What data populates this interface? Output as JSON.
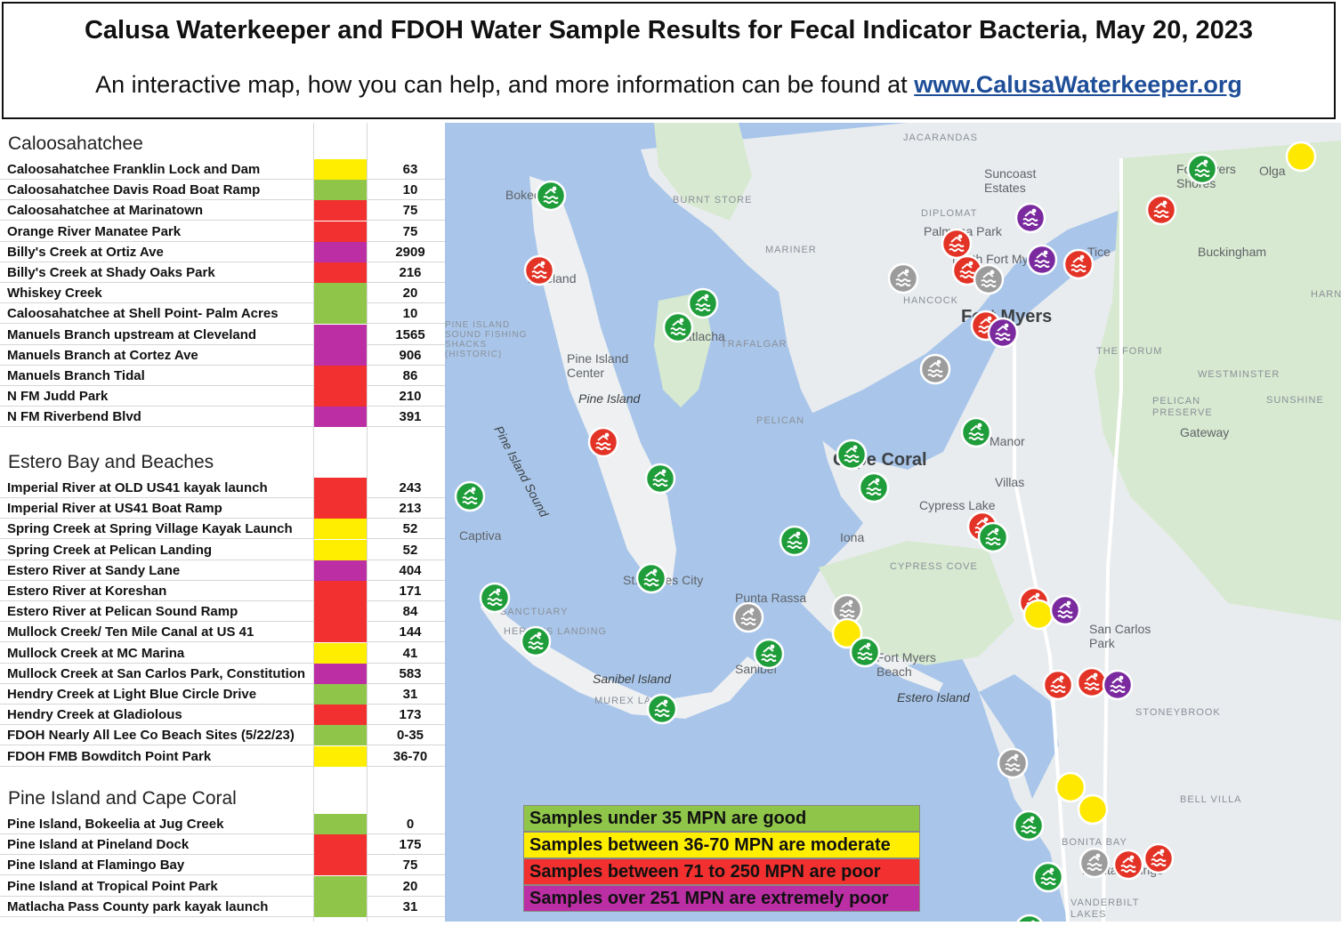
{
  "header": {
    "title": "Calusa Waterkeeper and FDOH Water Sample Results for Fecal Indicator Bacteria, May 20, 2023",
    "subtitle_prefix": "An interactive map, how you can help, and more information can be found at",
    "link_text": "www.CalusaWaterkeeper.org"
  },
  "colors": {
    "good": "#8fc64a",
    "moderate": "#ffee00",
    "poor": "#f23030",
    "extreme": "#bb2ea4",
    "gray": "#999999"
  },
  "sections": [
    {
      "title": "Caloosahatchee",
      "rows": [
        {
          "name": "Caloosahatchee Franklin Lock and Dam",
          "value": "63",
          "level": "moderate"
        },
        {
          "name": "Caloosahatchee Davis Road Boat Ramp",
          "value": "10",
          "level": "good"
        },
        {
          "name": "Caloosahatchee at Marinatown",
          "value": "75",
          "level": "poor"
        },
        {
          "name": "Orange River Manatee Park",
          "value": "75",
          "level": "poor"
        },
        {
          "name": "Billy's Creek at Ortiz Ave",
          "value": "2909",
          "level": "extreme"
        },
        {
          "name": "Billy's Creek at Shady Oaks Park",
          "value": "216",
          "level": "poor"
        },
        {
          "name": "Whiskey Creek",
          "value": "20",
          "level": "good"
        },
        {
          "name": "Caloosahatchee at Shell Point- Palm Acres",
          "value": "10",
          "level": "good"
        },
        {
          "name": "Manuels Branch upstream at Cleveland",
          "value": "1565",
          "level": "extreme"
        },
        {
          "name": "Manuels Branch at Cortez Ave",
          "value": "906",
          "level": "extreme"
        },
        {
          "name": "Manuels Branch Tidal",
          "value": "86",
          "level": "poor"
        },
        {
          "name": "N FM Judd Park",
          "value": "210",
          "level": "poor"
        },
        {
          "name": "N FM Riverbend Blvd",
          "value": "391",
          "level": "extreme"
        }
      ]
    },
    {
      "title": "Estero Bay and Beaches",
      "rows": [
        {
          "name": "Imperial River at OLD US41 kayak launch",
          "value": "243",
          "level": "poor"
        },
        {
          "name": "Imperial River at US41 Boat Ramp",
          "value": "213",
          "level": "poor"
        },
        {
          "name": "Spring Creek at Spring Village Kayak Launch",
          "value": "52",
          "level": "moderate"
        },
        {
          "name": "Spring Creek at Pelican Landing",
          "value": "52",
          "level": "moderate"
        },
        {
          "name": "Estero River at Sandy Lane",
          "value": "404",
          "level": "extreme"
        },
        {
          "name": "Estero River at Koreshan",
          "value": "171",
          "level": "poor"
        },
        {
          "name": "Estero River at Pelican Sound Ramp",
          "value": "84",
          "level": "poor"
        },
        {
          "name": "Mullock Creek/ Ten Mile Canal at US 41",
          "value": "144",
          "level": "poor"
        },
        {
          "name": "Mullock Creek at MC Marina",
          "value": "41",
          "level": "moderate"
        },
        {
          "name": "Mullock Creek at San Carlos Park, Constitution",
          "value": "583",
          "level": "extreme"
        },
        {
          "name": "Hendry Creek at Light Blue Circle Drive",
          "value": "31",
          "level": "good"
        },
        {
          "name": "Hendry Creek at Gladiolous",
          "value": "173",
          "level": "poor"
        },
        {
          "name": "FDOH Nearly All Lee Co Beach Sites (5/22/23)",
          "value": "0-35",
          "level": "good"
        },
        {
          "name": "FDOH FMB Bowditch Point Park",
          "value": "36-70",
          "level": "moderate"
        }
      ]
    },
    {
      "title": "Pine Island and Cape Coral",
      "rows": [
        {
          "name": "Pine Island, Bokeelia at Jug Creek",
          "value": "0",
          "level": "good"
        },
        {
          "name": "Pine Island at Pineland Dock",
          "value": "175",
          "level": "poor"
        },
        {
          "name": "Pine Island at Flamingo Bay",
          "value": "75",
          "level": "poor"
        },
        {
          "name": "Pine Island at Tropical Point Park",
          "value": "20",
          "level": "good"
        },
        {
          "name": "Matlacha Pass County park kayak launch",
          "value": "31",
          "level": "good"
        }
      ]
    }
  ],
  "map": {
    "labels": [
      {
        "id": "jacarandas",
        "text": "JACARANDAS",
        "style": "small"
      },
      {
        "id": "suncoast",
        "text": "Suncoast Estates",
        "style": "town"
      },
      {
        "id": "olga",
        "text": "Olga",
        "style": "town"
      },
      {
        "id": "fmshores",
        "text": "Fort Myers Shores",
        "style": "town"
      },
      {
        "id": "bokeelia",
        "text": "Bokeelia",
        "style": "town"
      },
      {
        "id": "burntstore",
        "text": "BURNT STORE",
        "style": "small"
      },
      {
        "id": "diplomat",
        "text": "DIPLOMAT",
        "style": "small"
      },
      {
        "id": "palmona",
        "text": "Palmona Park",
        "style": "town"
      },
      {
        "id": "buckingham",
        "text": "Buckingham",
        "style": "town"
      },
      {
        "id": "mariner",
        "text": "MARINER",
        "style": "small"
      },
      {
        "id": "tice",
        "text": "Tice",
        "style": "town"
      },
      {
        "id": "nfm",
        "text": "North Fort Myers",
        "style": "town"
      },
      {
        "id": "pineland",
        "text": "Pineland",
        "style": "town"
      },
      {
        "id": "hancock",
        "text": "HANCOCK",
        "style": "small"
      },
      {
        "id": "harns",
        "text": "HARNS",
        "style": "small"
      },
      {
        "id": "fortmyers",
        "text": "Fort Myers",
        "style": "city"
      },
      {
        "id": "pishacks",
        "text": "PINE ISLAND SOUND FISHING SHACKS (HISTORIC)",
        "style": "small"
      },
      {
        "id": "matlacha",
        "text": "Matlacha",
        "style": "town"
      },
      {
        "id": "trafalgar",
        "text": "TRAFALGAR",
        "style": "small"
      },
      {
        "id": "picenter",
        "text": "Pine Island Center",
        "style": "town"
      },
      {
        "id": "theforum",
        "text": "THE FORUM",
        "style": "small"
      },
      {
        "id": "westminster",
        "text": "WESTMINSTER",
        "style": "small"
      },
      {
        "id": "pineisland",
        "text": "Pine Island",
        "style": "italic"
      },
      {
        "id": "pelicanpres",
        "text": "PELICAN PRESERVE",
        "style": "small"
      },
      {
        "id": "sunshine",
        "text": "SUNSHINE",
        "style": "small"
      },
      {
        "id": "pelican",
        "text": "PELICAN",
        "style": "small"
      },
      {
        "id": "gateway",
        "text": "Gateway",
        "style": "town"
      },
      {
        "id": "pisound",
        "text": "Pine Island Sound",
        "style": "italic"
      },
      {
        "id": "manor",
        "text": "Manor",
        "style": "town"
      },
      {
        "id": "capecoral",
        "text": "Cape Coral",
        "style": "city"
      },
      {
        "id": "villas",
        "text": "Villas",
        "style": "town"
      },
      {
        "id": "captiva",
        "text": "Captiva",
        "style": "town"
      },
      {
        "id": "cypresslake",
        "text": "Cypress Lake",
        "style": "town"
      },
      {
        "id": "iona",
        "text": "Iona",
        "style": "town"
      },
      {
        "id": "cypresscove",
        "text": "CYPRESS COVE",
        "style": "small"
      },
      {
        "id": "stjames",
        "text": "St. James City",
        "style": "town"
      },
      {
        "id": "puntarassa",
        "text": "Punta Rassa",
        "style": "town"
      },
      {
        "id": "sanctuary",
        "text": "SANCTUARY",
        "style": "small"
      },
      {
        "id": "herons",
        "text": "HERON'S LANDING",
        "style": "small"
      },
      {
        "id": "sancarlos",
        "text": "San Carlos Park",
        "style": "town"
      },
      {
        "id": "sanibel",
        "text": "Sanibel",
        "style": "town"
      },
      {
        "id": "fmbeach",
        "text": "Fort Myers Beach",
        "style": "town"
      },
      {
        "id": "sanibelisland",
        "text": "Sanibel Island",
        "style": "italic"
      },
      {
        "id": "esteroisland",
        "text": "Estero Island",
        "style": "italic"
      },
      {
        "id": "murexlakes",
        "text": "MUREX LAKES",
        "style": "small"
      },
      {
        "id": "stoneybrook",
        "text": "STONEYBROOK",
        "style": "small"
      },
      {
        "id": "bellvilla",
        "text": "BELL VILLA",
        "style": "small"
      },
      {
        "id": "bonitabay",
        "text": "BONITA BAY",
        "style": "small"
      },
      {
        "id": "bonitasprings",
        "text": "Bonita Springs",
        "style": "town"
      },
      {
        "id": "vanderbilt",
        "text": "VANDERBILT LAKES",
        "style": "small"
      }
    ],
    "markers": [
      {
        "level": "moderate"
      },
      {
        "level": "good"
      },
      {
        "level": "poor"
      },
      {
        "level": "extreme"
      },
      {
        "level": "good"
      },
      {
        "level": "poor"
      },
      {
        "level": "poor"
      },
      {
        "level": "poor"
      },
      {
        "level": "extreme"
      },
      {
        "level": "poor"
      },
      {
        "level": "gray"
      },
      {
        "level": "gray"
      },
      {
        "level": "good"
      },
      {
        "level": "good"
      },
      {
        "level": "poor"
      },
      {
        "level": "extreme"
      },
      {
        "level": "gray"
      },
      {
        "level": "poor"
      },
      {
        "level": "good"
      },
      {
        "level": "good"
      },
      {
        "level": "good"
      },
      {
        "level": "good"
      },
      {
        "level": "good"
      },
      {
        "level": "poor"
      },
      {
        "level": "good"
      },
      {
        "level": "good"
      },
      {
        "level": "good"
      },
      {
        "level": "gray"
      },
      {
        "level": "gray"
      },
      {
        "level": "moderate"
      },
      {
        "level": "good"
      },
      {
        "level": "good"
      },
      {
        "level": "poor"
      },
      {
        "level": "moderate"
      },
      {
        "level": "extreme"
      },
      {
        "level": "good"
      },
      {
        "level": "good"
      },
      {
        "level": "good"
      },
      {
        "level": "poor"
      },
      {
        "level": "poor"
      },
      {
        "level": "extreme"
      },
      {
        "level": "good"
      },
      {
        "level": "gray"
      },
      {
        "level": "moderate"
      },
      {
        "level": "moderate"
      },
      {
        "level": "good"
      },
      {
        "level": "good"
      },
      {
        "level": "gray"
      },
      {
        "level": "poor"
      },
      {
        "level": "poor"
      }
    ]
  },
  "legend": [
    {
      "text": "Samples under 35 MPN are good",
      "level": "good"
    },
    {
      "text": "Samples between 36-70 MPN are moderate",
      "level": "moderate"
    },
    {
      "text": "Samples between 71 to 250 MPN are poor",
      "level": "poor"
    },
    {
      "text": "Samples over 251 MPN are extremely poor",
      "level": "extreme"
    }
  ]
}
